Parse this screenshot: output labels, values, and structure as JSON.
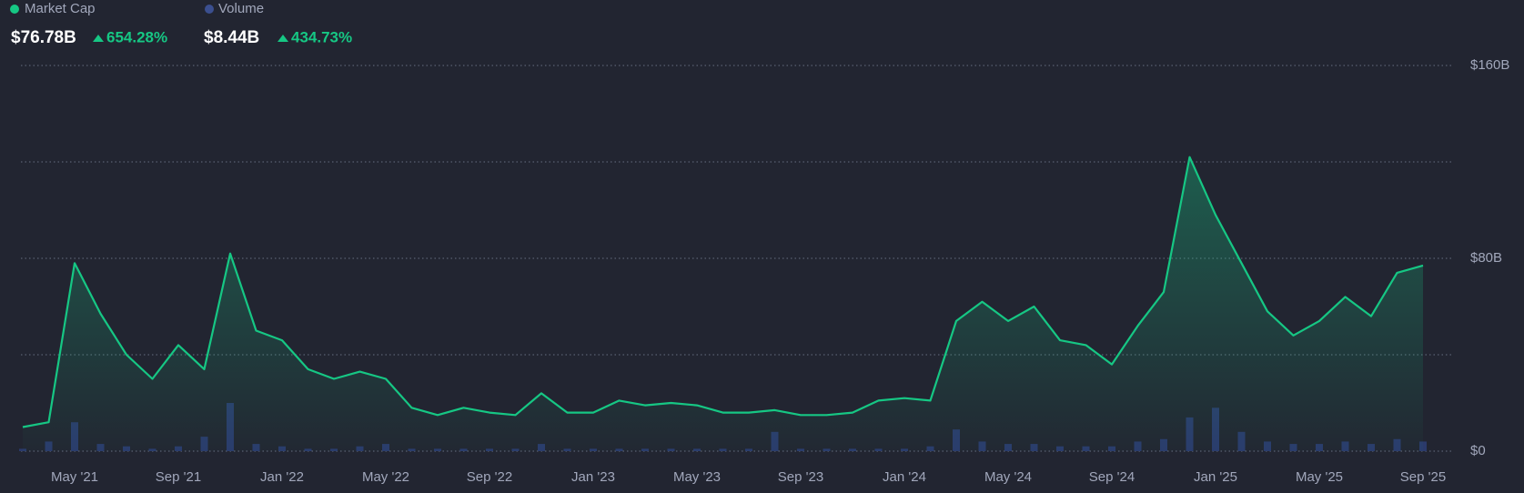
{
  "chart_data": {
    "type": "area",
    "series": [
      {
        "name": "Market Cap",
        "color": "#16c784",
        "x": [
          "2021-03",
          "2021-04",
          "2021-05",
          "2021-06",
          "2021-07",
          "2021-08",
          "2021-09",
          "2021-10",
          "2021-11",
          "2021-12",
          "2022-01",
          "2022-02",
          "2022-03",
          "2022-04",
          "2022-05",
          "2022-06",
          "2022-07",
          "2022-08",
          "2022-09",
          "2022-10",
          "2022-11",
          "2022-12",
          "2023-01",
          "2023-02",
          "2023-03",
          "2023-04",
          "2023-05",
          "2023-06",
          "2023-07",
          "2023-08",
          "2023-09",
          "2023-10",
          "2023-11",
          "2023-12",
          "2024-01",
          "2024-02",
          "2024-03",
          "2024-04",
          "2024-05",
          "2024-06",
          "2024-07",
          "2024-08",
          "2024-09",
          "2024-10",
          "2024-11",
          "2024-12",
          "2025-01",
          "2025-02",
          "2025-03",
          "2025-04",
          "2025-05",
          "2025-06",
          "2025-07",
          "2025-08",
          "2025-09"
        ],
        "values": [
          10,
          12,
          78,
          57,
          40,
          30,
          44,
          34,
          82,
          50,
          46,
          34,
          30,
          33,
          30,
          18,
          15,
          18,
          16,
          15,
          24,
          16,
          16,
          21,
          19,
          20,
          19,
          16,
          16,
          17,
          15,
          15,
          16,
          21,
          22,
          21,
          54,
          62,
          54,
          60,
          46,
          44,
          36,
          52,
          66,
          122,
          98,
          78,
          58,
          48,
          54,
          64,
          56,
          74,
          77
        ]
      },
      {
        "name": "Volume",
        "color": "#2b3a6b",
        "x": [
          "2021-03",
          "2021-04",
          "2021-05",
          "2021-06",
          "2021-07",
          "2021-08",
          "2021-09",
          "2021-10",
          "2021-11",
          "2021-12",
          "2022-01",
          "2022-02",
          "2022-03",
          "2022-04",
          "2022-05",
          "2022-06",
          "2022-07",
          "2022-08",
          "2022-09",
          "2022-10",
          "2022-11",
          "2022-12",
          "2023-01",
          "2023-02",
          "2023-03",
          "2023-04",
          "2023-05",
          "2023-06",
          "2023-07",
          "2023-08",
          "2023-09",
          "2023-10",
          "2023-11",
          "2023-12",
          "2024-01",
          "2024-02",
          "2024-03",
          "2024-04",
          "2024-05",
          "2024-06",
          "2024-07",
          "2024-08",
          "2024-09",
          "2024-10",
          "2024-11",
          "2024-12",
          "2025-01",
          "2025-02",
          "2025-03",
          "2025-04",
          "2025-05",
          "2025-06",
          "2025-07",
          "2025-08",
          "2025-09"
        ],
        "values": [
          1,
          4,
          12,
          3,
          2,
          1,
          2,
          6,
          20,
          3,
          2,
          1,
          1,
          2,
          3,
          1,
          1,
          1,
          1,
          1,
          3,
          1,
          1,
          1,
          1,
          1,
          1,
          1,
          1,
          8,
          1,
          1,
          1,
          1,
          1,
          2,
          9,
          4,
          3,
          3,
          2,
          2,
          2,
          4,
          5,
          14,
          18,
          8,
          4,
          3,
          3,
          4,
          3,
          5,
          4
        ]
      }
    ],
    "stats": [
      {
        "value": "$76.78B",
        "change": "654.28%"
      },
      {
        "value": "$8.44B",
        "change": "434.73%"
      }
    ],
    "xticks": [
      {
        "value": "2021-05",
        "label": "May '21"
      },
      {
        "value": "2021-09",
        "label": "Sep '21"
      },
      {
        "value": "2022-01",
        "label": "Jan '22"
      },
      {
        "value": "2022-05",
        "label": "May '22"
      },
      {
        "value": "2022-09",
        "label": "Sep '22"
      },
      {
        "value": "2023-01",
        "label": "Jan '23"
      },
      {
        "value": "2023-05",
        "label": "May '23"
      },
      {
        "value": "2023-09",
        "label": "Sep '23"
      },
      {
        "value": "2024-01",
        "label": "Jan '24"
      },
      {
        "value": "2024-05",
        "label": "May '24"
      },
      {
        "value": "2024-09",
        "label": "Sep '24"
      },
      {
        "value": "2025-01",
        "label": "Jan '25"
      },
      {
        "value": "2025-05",
        "label": "May '25"
      },
      {
        "value": "2025-09",
        "label": "Sep '25"
      }
    ],
    "ylim": [
      0,
      160
    ],
    "yticks": [
      {
        "value": 0,
        "label": "$0"
      },
      {
        "value": 80,
        "label": "$80B"
      },
      {
        "value": 160,
        "label": "$160B"
      }
    ],
    "minor_yticks": [
      40,
      120
    ],
    "grid": true
  }
}
